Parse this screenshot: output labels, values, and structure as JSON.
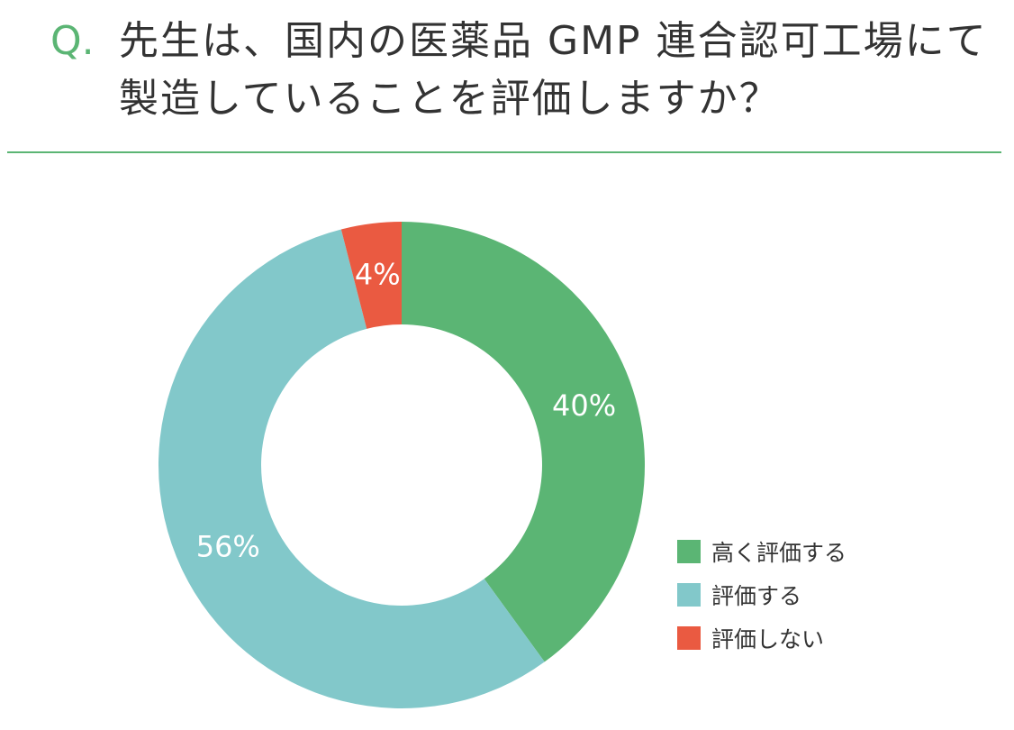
{
  "question": {
    "mark": "Q.",
    "line1": "先生は、国内の医薬品 GMP 連合認可工場にて",
    "line2": "製造していることを評価しますか？"
  },
  "colors": {
    "accent": "#5bb574",
    "divider": "#5bb574",
    "text": "#333333"
  },
  "chart_data": {
    "type": "pie",
    "donut": true,
    "categories": [
      "高く評価する",
      "評価する",
      "評価しない"
    ],
    "values": [
      40,
      56,
      4
    ],
    "labels": [
      "40%",
      "56%",
      "4%"
    ],
    "colors": [
      "#5bb574",
      "#82c8ca",
      "#ea5a41"
    ],
    "legend_position": "right-bottom",
    "start_angle": "top",
    "direction": "clockwise"
  }
}
